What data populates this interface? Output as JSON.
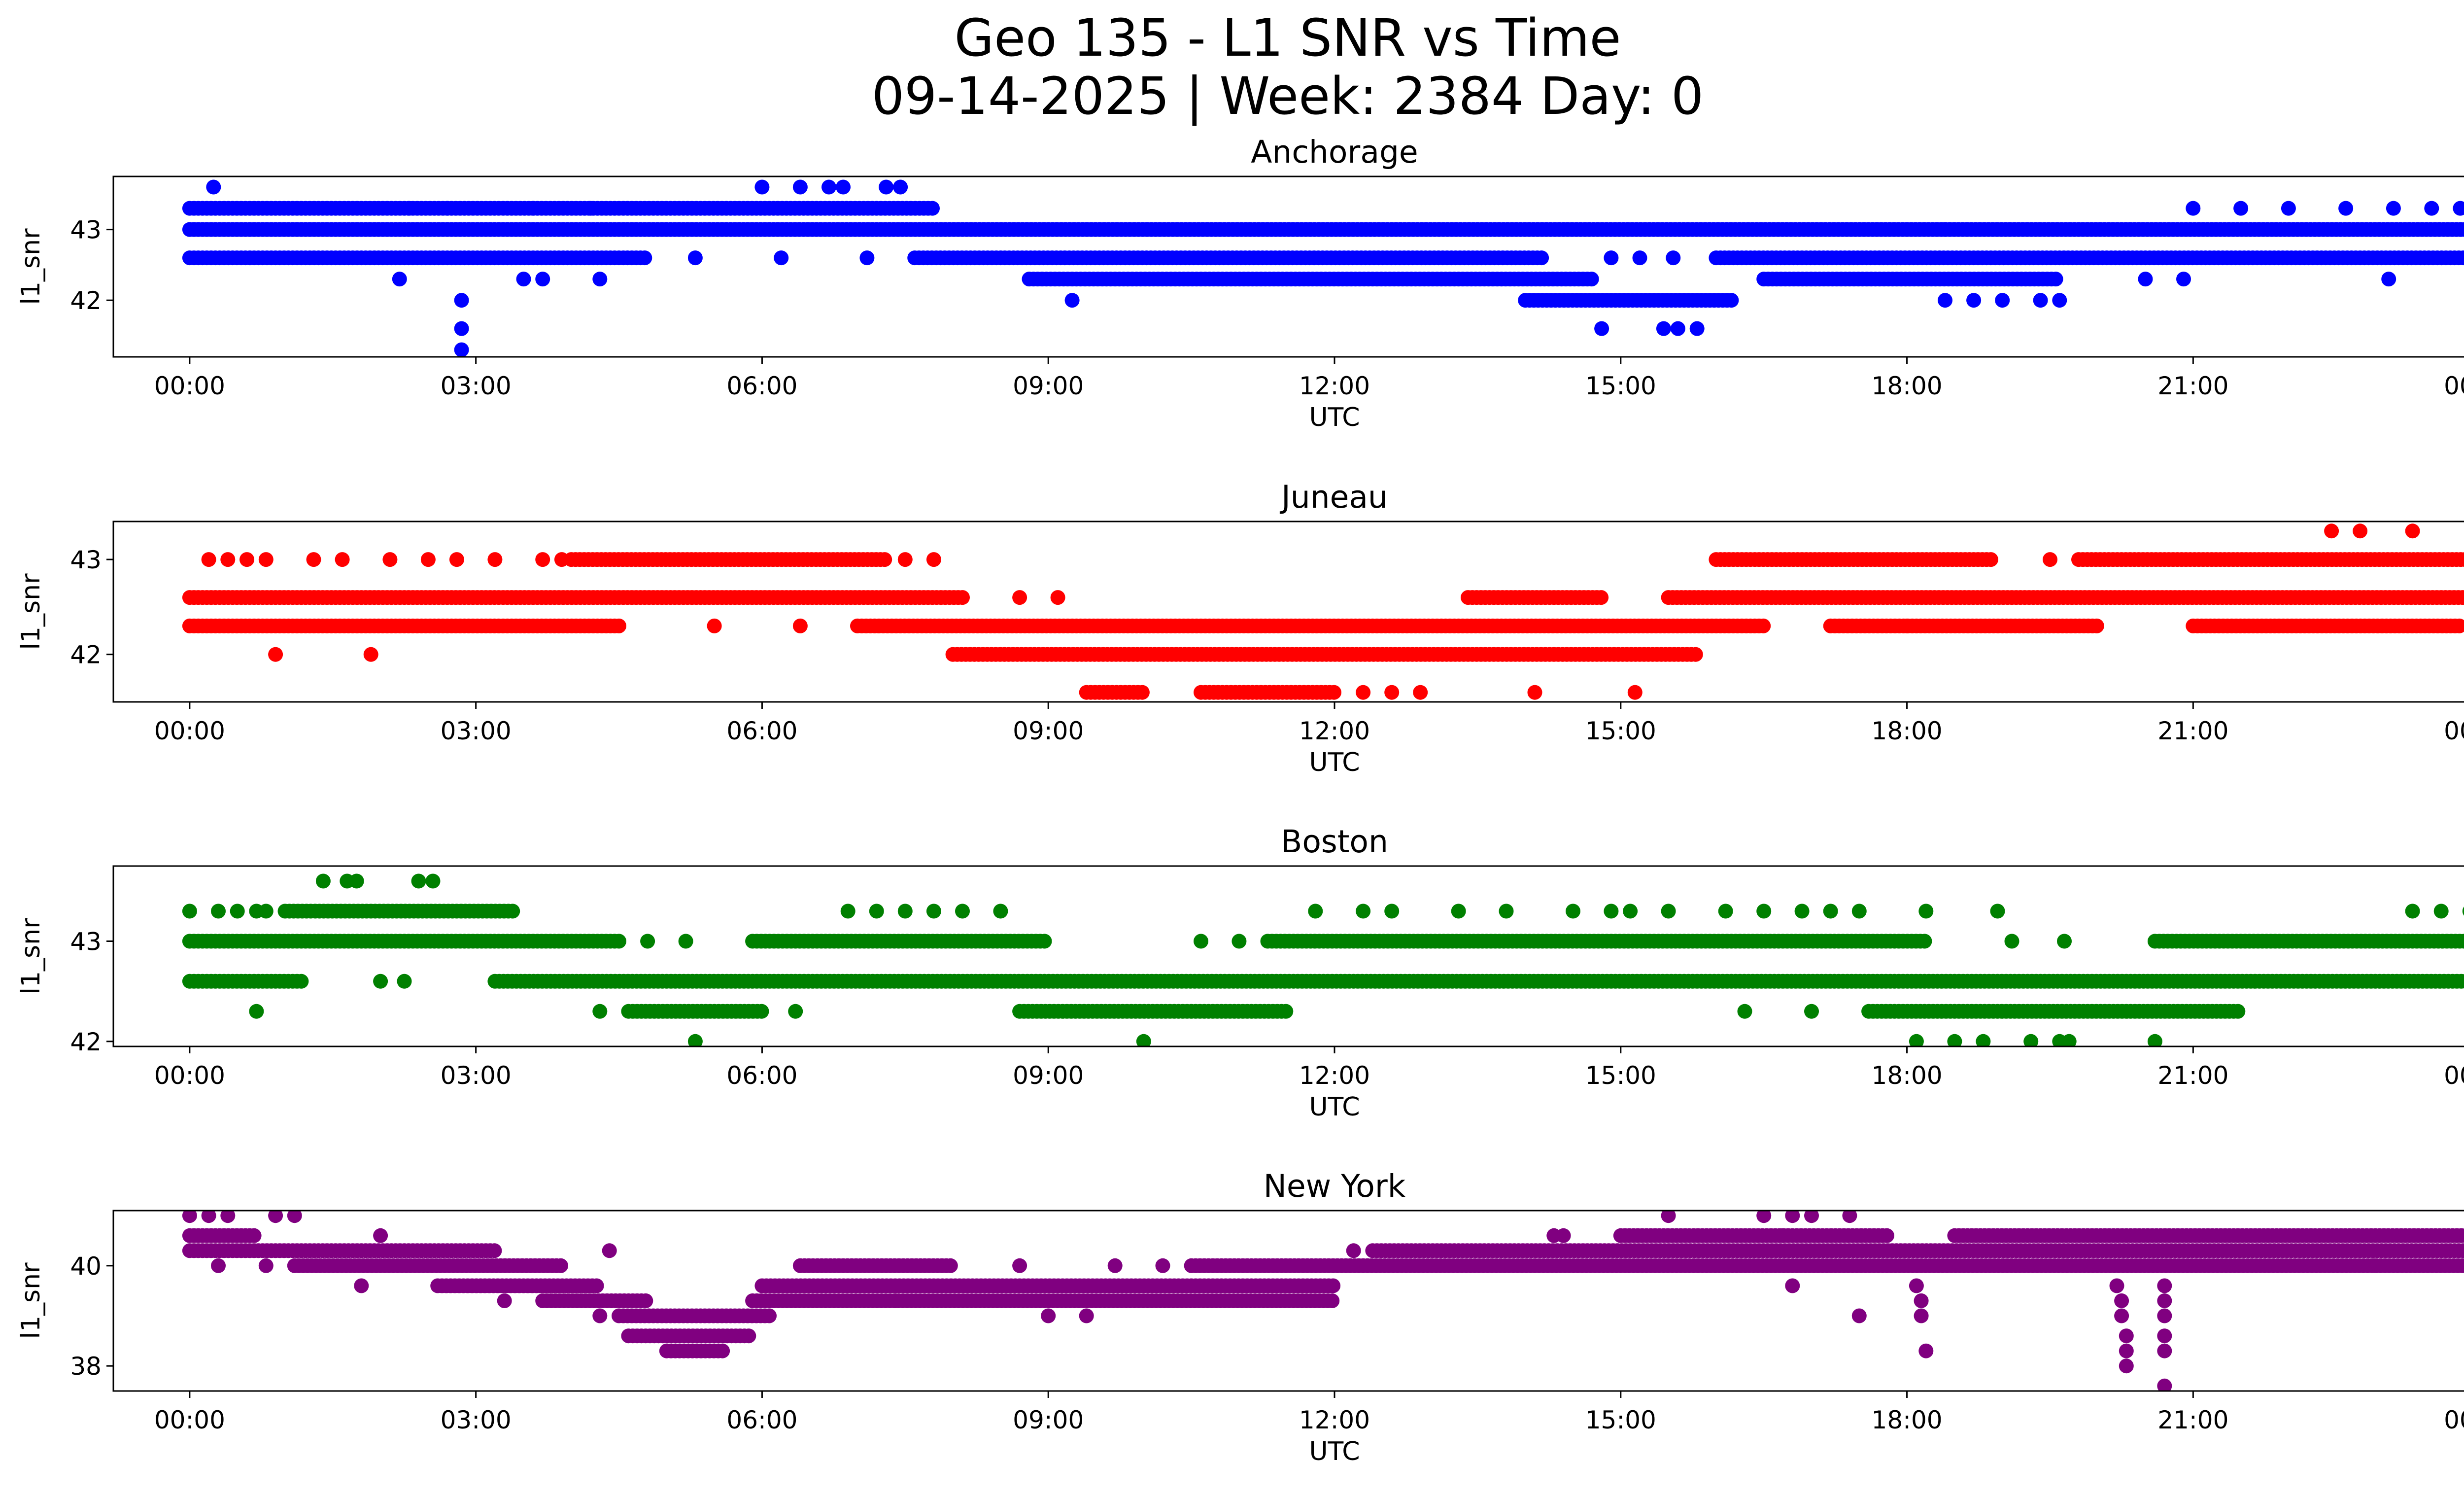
{
  "figure": {
    "title_line1": "Geo 135 - L1 SNR vs Time",
    "title_line2": "09-14-2025 | Week: 2384 Day: 0"
  },
  "chart_data": [
    {
      "type": "scatter",
      "title": "Anchorage",
      "color": "#0000ff",
      "xlabel": "UTC",
      "ylabel": "l1_snr",
      "x_unit": "hours",
      "xlim": [
        -0.8,
        24.8
      ],
      "ylim": [
        41.2,
        43.75
      ],
      "xticks": [
        0,
        3,
        6,
        9,
        12,
        15,
        18,
        21,
        24
      ],
      "xticklabels": [
        "00:00",
        "03:00",
        "06:00",
        "09:00",
        "12:00",
        "15:00",
        "18:00",
        "21:00",
        "00:00"
      ],
      "yticks": [
        42,
        43
      ],
      "yticklabels": [
        "42",
        "43"
      ],
      "dense_bands": [
        {
          "y": 43.3,
          "segments": [
            [
              0.0,
              7.8
            ]
          ]
        },
        {
          "y": 43.0,
          "segments": [
            [
              0.0,
              24.0
            ]
          ]
        },
        {
          "y": 42.6,
          "segments": [
            [
              0.0,
              4.8
            ],
            [
              7.6,
              14.2
            ],
            [
              16.0,
              24.0
            ]
          ]
        },
        {
          "y": 42.3,
          "segments": [
            [
              8.8,
              14.7
            ],
            [
              16.5,
              19.6
            ]
          ]
        },
        {
          "y": 42.0,
          "segments": [
            [
              14.0,
              16.2
            ]
          ]
        }
      ],
      "points": [
        {
          "x": 0.25,
          "y": 43.6
        },
        {
          "x": 6.0,
          "y": 43.6
        },
        {
          "x": 6.4,
          "y": 43.6
        },
        {
          "x": 6.7,
          "y": 43.6
        },
        {
          "x": 6.85,
          "y": 43.6
        },
        {
          "x": 7.3,
          "y": 43.6
        },
        {
          "x": 7.45,
          "y": 43.6
        },
        {
          "x": 2.85,
          "y": 42.0
        },
        {
          "x": 2.85,
          "y": 41.6
        },
        {
          "x": 2.85,
          "y": 41.3
        },
        {
          "x": 2.2,
          "y": 42.3
        },
        {
          "x": 3.5,
          "y": 42.3
        },
        {
          "x": 3.7,
          "y": 42.3
        },
        {
          "x": 4.3,
          "y": 42.3
        },
        {
          "x": 5.3,
          "y": 42.6
        },
        {
          "x": 6.2,
          "y": 42.6
        },
        {
          "x": 7.1,
          "y": 42.6
        },
        {
          "x": 9.25,
          "y": 42.0
        },
        {
          "x": 14.8,
          "y": 41.6
        },
        {
          "x": 15.45,
          "y": 41.6
        },
        {
          "x": 15.6,
          "y": 41.6
        },
        {
          "x": 15.8,
          "y": 41.6
        },
        {
          "x": 14.9,
          "y": 42.6
        },
        {
          "x": 15.2,
          "y": 42.6
        },
        {
          "x": 15.55,
          "y": 42.6
        },
        {
          "x": 18.4,
          "y": 42.0
        },
        {
          "x": 18.7,
          "y": 42.0
        },
        {
          "x": 19.0,
          "y": 42.0
        },
        {
          "x": 19.4,
          "y": 42.0
        },
        {
          "x": 19.6,
          "y": 42.0
        },
        {
          "x": 18.4,
          "y": 43.0
        },
        {
          "x": 21.0,
          "y": 43.3
        },
        {
          "x": 21.5,
          "y": 43.3
        },
        {
          "x": 22.0,
          "y": 43.3
        },
        {
          "x": 22.6,
          "y": 43.3
        },
        {
          "x": 23.1,
          "y": 43.3
        },
        {
          "x": 23.5,
          "y": 43.3
        },
        {
          "x": 23.8,
          "y": 43.3
        },
        {
          "x": 23.05,
          "y": 42.3
        },
        {
          "x": 20.5,
          "y": 42.3
        },
        {
          "x": 20.9,
          "y": 42.3
        },
        {
          "x": 2.3,
          "y": 43.3
        },
        {
          "x": 2.7,
          "y": 43.3
        },
        {
          "x": 3.6,
          "y": 43.3
        },
        {
          "x": 4.2,
          "y": 43.3
        }
      ]
    },
    {
      "type": "scatter",
      "title": "Juneau",
      "color": "#ff0000",
      "xlabel": "UTC",
      "ylabel": "l1_snr",
      "x_unit": "hours",
      "xlim": [
        -0.8,
        24.8
      ],
      "ylim": [
        41.5,
        43.4
      ],
      "xticks": [
        0,
        3,
        6,
        9,
        12,
        15,
        18,
        21,
        24
      ],
      "xticklabels": [
        "00:00",
        "03:00",
        "06:00",
        "09:00",
        "12:00",
        "15:00",
        "18:00",
        "21:00",
        "00:00"
      ],
      "yticks": [
        42,
        43
      ],
      "yticklabels": [
        "42",
        "43"
      ],
      "dense_bands": [
        {
          "y": 43.0,
          "segments": [
            [
              4.0,
              7.3
            ],
            [
              16.0,
              18.9
            ],
            [
              19.8,
              24.0
            ]
          ]
        },
        {
          "y": 42.6,
          "segments": [
            [
              0.0,
              8.1
            ],
            [
              13.4,
              14.8
            ],
            [
              15.5,
              24.0
            ]
          ]
        },
        {
          "y": 42.3,
          "segments": [
            [
              0.0,
              4.5
            ],
            [
              7.0,
              16.5
            ],
            [
              17.2,
              20.0
            ],
            [
              21.0,
              23.8
            ]
          ]
        },
        {
          "y": 42.0,
          "segments": [
            [
              8.0,
              15.8
            ]
          ]
        },
        {
          "y": 41.6,
          "segments": [
            [
              9.4,
              10.0
            ],
            [
              10.6,
              12.0
            ]
          ]
        }
      ],
      "points": [
        {
          "x": 0.2,
          "y": 43.0
        },
        {
          "x": 0.4,
          "y": 43.0
        },
        {
          "x": 0.6,
          "y": 43.0
        },
        {
          "x": 0.8,
          "y": 43.0
        },
        {
          "x": 1.3,
          "y": 43.0
        },
        {
          "x": 1.6,
          "y": 43.0
        },
        {
          "x": 2.1,
          "y": 43.0
        },
        {
          "x": 2.5,
          "y": 43.0
        },
        {
          "x": 2.8,
          "y": 43.0
        },
        {
          "x": 3.2,
          "y": 43.0
        },
        {
          "x": 3.7,
          "y": 43.0
        },
        {
          "x": 3.9,
          "y": 43.0
        },
        {
          "x": 7.5,
          "y": 43.0
        },
        {
          "x": 7.8,
          "y": 43.0
        },
        {
          "x": 0.9,
          "y": 42.0
        },
        {
          "x": 1.9,
          "y": 42.0
        },
        {
          "x": 8.7,
          "y": 42.6
        },
        {
          "x": 9.1,
          "y": 42.6
        },
        {
          "x": 12.3,
          "y": 41.6
        },
        {
          "x": 12.6,
          "y": 41.6
        },
        {
          "x": 12.9,
          "y": 41.6
        },
        {
          "x": 14.1,
          "y": 41.6
        },
        {
          "x": 15.15,
          "y": 41.6
        },
        {
          "x": 22.45,
          "y": 43.3
        },
        {
          "x": 22.75,
          "y": 43.3
        },
        {
          "x": 23.3,
          "y": 43.3
        },
        {
          "x": 19.5,
          "y": 43.0
        },
        {
          "x": 5.5,
          "y": 42.3
        },
        {
          "x": 6.4,
          "y": 42.3
        },
        {
          "x": 18.0,
          "y": 42.3
        },
        {
          "x": 23.9,
          "y": 42.3
        }
      ]
    },
    {
      "type": "scatter",
      "title": "Boston",
      "color": "#008000",
      "xlabel": "UTC",
      "ylabel": "l1_snr",
      "x_unit": "hours",
      "xlim": [
        -0.8,
        24.8
      ],
      "ylim": [
        41.95,
        43.75
      ],
      "xticks": [
        0,
        3,
        6,
        9,
        12,
        15,
        18,
        21,
        24
      ],
      "xticklabels": [
        "00:00",
        "03:00",
        "06:00",
        "09:00",
        "12:00",
        "15:00",
        "18:00",
        "21:00",
        "00:00"
      ],
      "yticks": [
        42,
        43
      ],
      "yticklabels": [
        "42",
        "43"
      ],
      "dense_bands": [
        {
          "y": 43.3,
          "segments": [
            [
              1.0,
              3.4
            ]
          ]
        },
        {
          "y": 43.0,
          "segments": [
            [
              0.0,
              4.5
            ],
            [
              5.9,
              9.0
            ],
            [
              11.3,
              18.2
            ],
            [
              20.6,
              24.0
            ]
          ]
        },
        {
          "y": 42.6,
          "segments": [
            [
              0.0,
              1.2
            ],
            [
              3.2,
              24.0
            ]
          ]
        },
        {
          "y": 42.3,
          "segments": [
            [
              4.6,
              6.0
            ],
            [
              8.7,
              11.5
            ],
            [
              17.6,
              21.5
            ]
          ]
        }
      ],
      "points": [
        {
          "x": 0.0,
          "y": 43.3
        },
        {
          "x": 0.3,
          "y": 43.3
        },
        {
          "x": 0.5,
          "y": 43.3
        },
        {
          "x": 0.7,
          "y": 43.3
        },
        {
          "x": 0.8,
          "y": 43.3
        },
        {
          "x": 1.4,
          "y": 43.6
        },
        {
          "x": 1.65,
          "y": 43.6
        },
        {
          "x": 1.75,
          "y": 43.6
        },
        {
          "x": 2.4,
          "y": 43.6
        },
        {
          "x": 2.55,
          "y": 43.6
        },
        {
          "x": 0.7,
          "y": 42.3
        },
        {
          "x": 5.3,
          "y": 42.0
        },
        {
          "x": 10.0,
          "y": 42.0
        },
        {
          "x": 4.3,
          "y": 42.3
        },
        {
          "x": 6.35,
          "y": 42.3
        },
        {
          "x": 2.0,
          "y": 42.6
        },
        {
          "x": 2.25,
          "y": 42.6
        },
        {
          "x": 5.2,
          "y": 43.0
        },
        {
          "x": 4.8,
          "y": 43.0
        },
        {
          "x": 10.6,
          "y": 43.0
        },
        {
          "x": 11.0,
          "y": 43.0
        },
        {
          "x": 6.9,
          "y": 43.3
        },
        {
          "x": 7.2,
          "y": 43.3
        },
        {
          "x": 7.5,
          "y": 43.3
        },
        {
          "x": 7.8,
          "y": 43.3
        },
        {
          "x": 8.1,
          "y": 43.3
        },
        {
          "x": 8.5,
          "y": 43.3
        },
        {
          "x": 11.8,
          "y": 43.3
        },
        {
          "x": 12.3,
          "y": 43.3
        },
        {
          "x": 12.6,
          "y": 43.3
        },
        {
          "x": 13.3,
          "y": 43.3
        },
        {
          "x": 13.8,
          "y": 43.3
        },
        {
          "x": 14.5,
          "y": 43.3
        },
        {
          "x": 14.9,
          "y": 43.3
        },
        {
          "x": 15.1,
          "y": 43.3
        },
        {
          "x": 15.5,
          "y": 43.3
        },
        {
          "x": 16.1,
          "y": 43.3
        },
        {
          "x": 16.5,
          "y": 43.3
        },
        {
          "x": 16.9,
          "y": 43.3
        },
        {
          "x": 17.2,
          "y": 43.3
        },
        {
          "x": 17.5,
          "y": 43.3
        },
        {
          "x": 18.2,
          "y": 43.3
        },
        {
          "x": 18.95,
          "y": 43.3
        },
        {
          "x": 16.3,
          "y": 42.3
        },
        {
          "x": 17.0,
          "y": 42.3
        },
        {
          "x": 18.1,
          "y": 42.0
        },
        {
          "x": 18.5,
          "y": 42.0
        },
        {
          "x": 18.8,
          "y": 42.0
        },
        {
          "x": 19.3,
          "y": 42.0
        },
        {
          "x": 19.6,
          "y": 42.0
        },
        {
          "x": 19.7,
          "y": 42.0
        },
        {
          "x": 20.6,
          "y": 42.0
        },
        {
          "x": 23.3,
          "y": 43.3
        },
        {
          "x": 23.6,
          "y": 43.3
        },
        {
          "x": 23.9,
          "y": 43.3
        },
        {
          "x": 19.1,
          "y": 43.0
        },
        {
          "x": 19.65,
          "y": 43.0
        }
      ]
    },
    {
      "type": "scatter",
      "title": "New York",
      "color": "#800080",
      "xlabel": "UTC",
      "ylabel": "l1_snr",
      "x_unit": "hours",
      "xlim": [
        -0.8,
        24.8
      ],
      "ylim": [
        37.5,
        41.1
      ],
      "xticks": [
        0,
        3,
        6,
        9,
        12,
        15,
        18,
        21,
        24
      ],
      "xticklabels": [
        "00:00",
        "03:00",
        "06:00",
        "09:00",
        "12:00",
        "15:00",
        "18:00",
        "21:00",
        "00:00"
      ],
      "yticks": [
        38,
        40
      ],
      "yticklabels": [
        "38",
        "40"
      ],
      "dense_bands": [
        {
          "y": 40.6,
          "segments": [
            [
              0.0,
              0.7
            ],
            [
              15.0,
              17.8
            ],
            [
              18.5,
              24.0
            ]
          ]
        },
        {
          "y": 40.3,
          "segments": [
            [
              0.0,
              3.2
            ],
            [
              12.4,
              24.0
            ]
          ]
        },
        {
          "y": 40.0,
          "segments": [
            [
              1.1,
              3.9
            ],
            [
              6.4,
              8.0
            ],
            [
              10.5,
              24.0
            ]
          ]
        },
        {
          "y": 39.6,
          "segments": [
            [
              2.6,
              4.3
            ],
            [
              6.0,
              12.0
            ]
          ]
        },
        {
          "y": 39.3,
          "segments": [
            [
              3.7,
              4.8
            ],
            [
              5.9,
              12.0
            ]
          ]
        },
        {
          "y": 39.0,
          "segments": [
            [
              4.5,
              6.1
            ]
          ]
        },
        {
          "y": 38.6,
          "segments": [
            [
              4.6,
              5.9
            ]
          ]
        },
        {
          "y": 38.3,
          "segments": [
            [
              5.0,
              5.6
            ]
          ]
        }
      ],
      "points": [
        {
          "x": 0.0,
          "y": 41.0
        },
        {
          "x": 0.2,
          "y": 41.0
        },
        {
          "x": 0.4,
          "y": 41.0
        },
        {
          "x": 0.9,
          "y": 41.0
        },
        {
          "x": 1.1,
          "y": 41.0
        },
        {
          "x": 15.5,
          "y": 41.0
        },
        {
          "x": 16.5,
          "y": 41.0
        },
        {
          "x": 16.8,
          "y": 41.0
        },
        {
          "x": 17.0,
          "y": 41.0
        },
        {
          "x": 17.4,
          "y": 41.0
        },
        {
          "x": 16.7,
          "y": 40.6
        },
        {
          "x": 16.8,
          "y": 39.6
        },
        {
          "x": 17.5,
          "y": 39.0
        },
        {
          "x": 18.1,
          "y": 39.6
        },
        {
          "x": 18.15,
          "y": 39.3
        },
        {
          "x": 18.15,
          "y": 39.0
        },
        {
          "x": 18.2,
          "y": 38.3
        },
        {
          "x": 20.2,
          "y": 39.6
        },
        {
          "x": 20.25,
          "y": 39.3
        },
        {
          "x": 20.25,
          "y": 39.0
        },
        {
          "x": 20.3,
          "y": 38.6
        },
        {
          "x": 20.3,
          "y": 38.3
        },
        {
          "x": 20.3,
          "y": 38.0
        },
        {
          "x": 20.7,
          "y": 39.6
        },
        {
          "x": 20.7,
          "y": 39.3
        },
        {
          "x": 20.7,
          "y": 39.0
        },
        {
          "x": 20.7,
          "y": 38.6
        },
        {
          "x": 20.7,
          "y": 38.3
        },
        {
          "x": 20.7,
          "y": 37.6
        },
        {
          "x": 0.3,
          "y": 40.0
        },
        {
          "x": 0.8,
          "y": 40.0
        },
        {
          "x": 1.8,
          "y": 39.6
        },
        {
          "x": 2.0,
          "y": 40.6
        },
        {
          "x": 3.3,
          "y": 39.3
        },
        {
          "x": 4.4,
          "y": 40.3
        },
        {
          "x": 4.3,
          "y": 39.0
        },
        {
          "x": 7.4,
          "y": 39.3
        },
        {
          "x": 8.7,
          "y": 40.0
        },
        {
          "x": 9.0,
          "y": 39.0
        },
        {
          "x": 9.4,
          "y": 39.0
        },
        {
          "x": 9.7,
          "y": 40.0
        },
        {
          "x": 10.2,
          "y": 40.0
        },
        {
          "x": 12.2,
          "y": 40.3
        },
        {
          "x": 14.3,
          "y": 40.6
        },
        {
          "x": 14.4,
          "y": 40.6
        },
        {
          "x": 23.9,
          "y": 40.0
        },
        {
          "x": 22.9,
          "y": 40.0
        }
      ]
    }
  ]
}
